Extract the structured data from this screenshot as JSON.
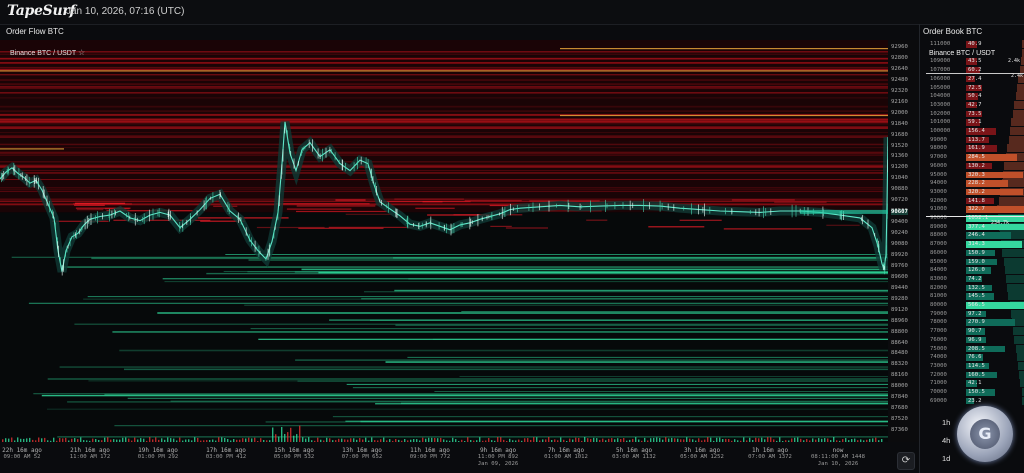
{
  "app": {
    "logo": "TapeSurf",
    "datetime": "Jan 10, 2026, 07:16 (UTC)"
  },
  "order_flow": {
    "title": "Order Flow BTC",
    "pair": "Binance BTC / USDT",
    "star_icon": "star-icon"
  },
  "order_book": {
    "title": "Order Book BTC",
    "pair": "Binance BTC / USDT",
    "tag_top": "2.4k",
    "tag_mid": "234.7k",
    "tag_bottom": "2.4k"
  },
  "chart_data": {
    "type": "line",
    "title": "",
    "xlabel": "",
    "ylabel": "",
    "y_ticks": [
      "92960",
      "92800",
      "92640",
      "92480",
      "92320",
      "92160",
      "92000",
      "91840",
      "91680",
      "91520",
      "91360",
      "91200",
      "91040",
      "90880",
      "90720",
      "90560",
      "90400",
      "90240",
      "90080",
      "89920",
      "89760",
      "89600",
      "89440",
      "89280",
      "89120",
      "88960",
      "88800",
      "88640",
      "88480",
      "88320",
      "88160",
      "88000",
      "87840",
      "87680",
      "87520",
      "87360"
    ],
    "current_price": "90607",
    "ylim": [
      87360,
      92960
    ],
    "x_ticks": [
      {
        "label": "22h 16m ago",
        "sub": "09:00 AM 52"
      },
      {
        "label": "21h 16m ago",
        "sub": "11:00 AM 172"
      },
      {
        "label": "19h 16m ago",
        "sub": "01:00 PM 292"
      },
      {
        "label": "17h 16m ago",
        "sub": "03:00 PM 412"
      },
      {
        "label": "15h 16m ago",
        "sub": "05:00 PM 532"
      },
      {
        "label": "13h 16m ago",
        "sub": "07:00 PM 652"
      },
      {
        "label": "11h 16m ago",
        "sub": "09:00 PM 772"
      },
      {
        "label": "9h 16m ago",
        "sub": "11:00 PM 892",
        "date": "Jan 09, 2026"
      },
      {
        "label": "7h 16m ago",
        "sub": "01:00 AM 1012"
      },
      {
        "label": "5h 16m ago",
        "sub": "03:00 AM 1132"
      },
      {
        "label": "3h 16m ago",
        "sub": "05:00 AM 1252"
      },
      {
        "label": "1h 16m ago",
        "sub": "07:00 AM 1372"
      },
      {
        "label": "now",
        "sub": "08:11:00 AM 1448",
        "date": "Jan 10, 2026"
      }
    ],
    "series": [
      {
        "values": [
          [
            0,
            91080
          ],
          [
            6,
            91180
          ],
          [
            12,
            91240
          ],
          [
            18,
            91160
          ],
          [
            24,
            91100
          ],
          [
            30,
            91020
          ],
          [
            36,
            91060
          ],
          [
            42,
            90920
          ],
          [
            48,
            90720
          ],
          [
            54,
            90520
          ],
          [
            58,
            90050
          ],
          [
            62,
            89750
          ],
          [
            66,
            90050
          ],
          [
            72,
            90250
          ],
          [
            78,
            90300
          ],
          [
            84,
            90420
          ],
          [
            90,
            90500
          ],
          [
            100,
            90540
          ],
          [
            110,
            90560
          ],
          [
            120,
            90620
          ],
          [
            130,
            90520
          ],
          [
            140,
            90480
          ],
          [
            150,
            90560
          ],
          [
            160,
            90600
          ],
          [
            170,
            90560
          ],
          [
            180,
            90380
          ],
          [
            190,
            90500
          ],
          [
            200,
            90640
          ],
          [
            210,
            90800
          ],
          [
            220,
            90860
          ],
          [
            230,
            90620
          ],
          [
            240,
            90500
          ],
          [
            250,
            90200
          ],
          [
            258,
            90050
          ],
          [
            266,
            89930
          ],
          [
            272,
            90180
          ],
          [
            278,
            90600
          ],
          [
            282,
            91300
          ],
          [
            285,
            91900
          ],
          [
            290,
            91450
          ],
          [
            296,
            91200
          ],
          [
            302,
            91500
          ],
          [
            310,
            91600
          ],
          [
            320,
            91400
          ],
          [
            330,
            91500
          ],
          [
            340,
            91300
          ],
          [
            350,
            91200
          ],
          [
            360,
            91350
          ],
          [
            368,
            91300
          ],
          [
            374,
            91000
          ],
          [
            380,
            90750
          ],
          [
            390,
            90650
          ],
          [
            400,
            90550
          ],
          [
            410,
            90430
          ],
          [
            420,
            90400
          ],
          [
            430,
            90450
          ],
          [
            440,
            90400
          ],
          [
            450,
            90350
          ],
          [
            460,
            90420
          ],
          [
            470,
            90450
          ],
          [
            480,
            90500
          ],
          [
            490,
            90540
          ],
          [
            500,
            90580
          ],
          [
            510,
            90640
          ],
          [
            520,
            90660
          ],
          [
            540,
            90680
          ],
          [
            560,
            90700
          ],
          [
            580,
            90680
          ],
          [
            600,
            90690
          ],
          [
            620,
            90700
          ],
          [
            640,
            90700
          ],
          [
            660,
            90690
          ],
          [
            680,
            90660
          ],
          [
            700,
            90640
          ],
          [
            720,
            90620
          ],
          [
            740,
            90610
          ],
          [
            760,
            90600
          ],
          [
            780,
            90620
          ],
          [
            800,
            90620
          ],
          [
            820,
            90600
          ],
          [
            840,
            90560
          ],
          [
            860,
            90520
          ],
          [
            872,
            90380
          ],
          [
            878,
            90120
          ],
          [
            882,
            89860
          ],
          [
            884,
            89780
          ],
          [
            886,
            89990
          ],
          [
            887,
            90700
          ],
          [
            888,
            91680
          ]
        ]
      }
    ],
    "grid": false
  },
  "order_book_rows": [
    {
      "level": "111000",
      "vol": "40.9",
      "side": "ask"
    },
    {
      "level": "110000",
      "vol": "36.6",
      "side": "ask"
    },
    {
      "level": "109000",
      "vol": "43.5",
      "side": "ask"
    },
    {
      "level": "107000",
      "vol": "60.2",
      "side": "ask"
    },
    {
      "level": "106000",
      "vol": "27.4",
      "side": "ask"
    },
    {
      "level": "105000",
      "vol": "72.5",
      "side": "ask"
    },
    {
      "level": "104000",
      "vol": "50.4",
      "side": "ask"
    },
    {
      "level": "103000",
      "vol": "42.7",
      "side": "ask"
    },
    {
      "level": "102000",
      "vol": "73.5",
      "side": "ask"
    },
    {
      "level": "101000",
      "vol": "59.1",
      "side": "ask"
    },
    {
      "level": "100000",
      "vol": "156.4",
      "side": "ask"
    },
    {
      "level": "99000",
      "vol": "113.7",
      "side": "ask"
    },
    {
      "level": "98000",
      "vol": "161.9",
      "side": "ask"
    },
    {
      "level": "97000",
      "vol": "284.5",
      "side": "ask"
    },
    {
      "level": "96000",
      "vol": "130.2",
      "side": "ask"
    },
    {
      "level": "95000",
      "vol": "320.3",
      "side": "ask"
    },
    {
      "level": "94000",
      "vol": "228.2",
      "side": "ask"
    },
    {
      "level": "93000",
      "vol": "320.2",
      "side": "ask"
    },
    {
      "level": "92000",
      "vol": "141.8",
      "side": "ask"
    },
    {
      "level": "91000",
      "vol": "322.7",
      "side": "ask"
    },
    {
      "level": "90000",
      "vol": "1052.1",
      "side": "bid"
    },
    {
      "level": "89000",
      "vol": "377.4",
      "side": "bid"
    },
    {
      "level": "88000",
      "vol": "246.4",
      "side": "bid"
    },
    {
      "level": "87000",
      "vol": "314.3",
      "side": "bid"
    },
    {
      "level": "86000",
      "vol": "150.9",
      "side": "bid"
    },
    {
      "level": "85000",
      "vol": "159.0",
      "side": "bid"
    },
    {
      "level": "84000",
      "vol": "126.0",
      "side": "bid"
    },
    {
      "level": "83000",
      "vol": "74.2",
      "side": "bid"
    },
    {
      "level": "82000",
      "vol": "132.5",
      "side": "bid"
    },
    {
      "level": "81000",
      "vol": "145.5",
      "side": "bid"
    },
    {
      "level": "80000",
      "vol": "566.5",
      "side": "bid"
    },
    {
      "level": "79000",
      "vol": "97.2",
      "side": "bid"
    },
    {
      "level": "78000",
      "vol": "270.9",
      "side": "bid"
    },
    {
      "level": "77000",
      "vol": "90.7",
      "side": "bid"
    },
    {
      "level": "76000",
      "vol": "96.9",
      "side": "bid"
    },
    {
      "level": "75000",
      "vol": "208.5",
      "side": "bid"
    },
    {
      "level": "74000",
      "vol": "76.6",
      "side": "bid"
    },
    {
      "level": "73000",
      "vol": "114.5",
      "side": "bid"
    },
    {
      "level": "72000",
      "vol": "160.5",
      "side": "bid"
    },
    {
      "level": "71000",
      "vol": "42.1",
      "side": "bid"
    },
    {
      "level": "70000",
      "vol": "150.5",
      "side": "bid"
    },
    {
      "level": "69000",
      "vol": "23.2",
      "side": "bid"
    }
  ],
  "timeframes": [
    "1h",
    "4h",
    "1d"
  ],
  "colors": {
    "bid": "#1fd39a",
    "ask": "#e03131",
    "accent": "#e5a23a",
    "bg": "#0a0b0e"
  },
  "reset_icon": "refresh-icon"
}
